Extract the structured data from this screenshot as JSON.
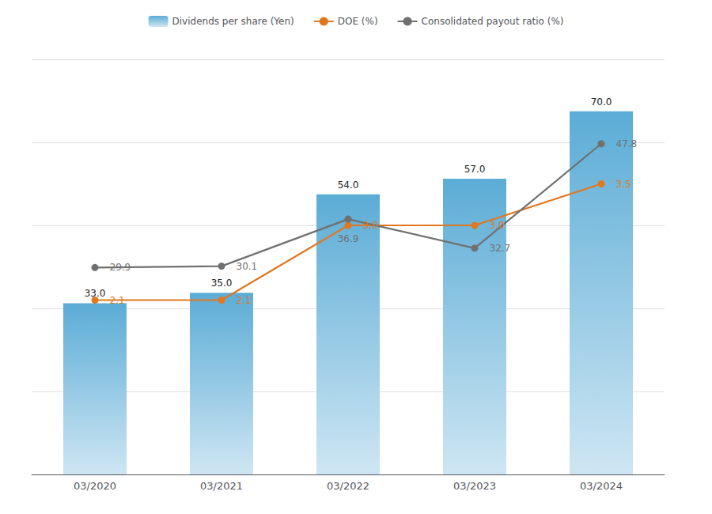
{
  "chart_data": {
    "type": "bar",
    "categories": [
      "03/2020",
      "03/2021",
      "03/2022",
      "03/2023",
      "03/2024"
    ],
    "ylim": [
      0,
      80
    ],
    "yticks": [
      0,
      16,
      32,
      48,
      64,
      80
    ],
    "y2lim": [
      0,
      5
    ],
    "y3lim": [
      0,
      60
    ],
    "grid": true,
    "tick_labels": "x",
    "legend": "top",
    "data_labels": true,
    "series": [
      {
        "name": "Dividends per share (Yen)",
        "type": "bar",
        "color": "#5bacd6",
        "values": [
          33.0,
          35.0,
          54.0,
          57.0,
          70.0
        ],
        "value_labels": [
          "33.0",
          "35.0",
          "54.0",
          "57.0",
          "70.0"
        ]
      },
      {
        "name": "DOE (%)",
        "type": "line",
        "axis": "y2",
        "color": "#e07820",
        "marker": "circle",
        "values": [
          2.1,
          2.1,
          3.0,
          3.0,
          3.5
        ],
        "value_labels": [
          "2.1",
          "2.1",
          "3.0",
          "3.0",
          "3.5"
        ]
      },
      {
        "name": "Consolidated payout ratio (%)",
        "type": "line",
        "axis": "y3",
        "color": "#707070",
        "marker": "circle",
        "values": [
          29.9,
          30.1,
          36.9,
          32.7,
          47.8
        ]
      }
    ]
  }
}
